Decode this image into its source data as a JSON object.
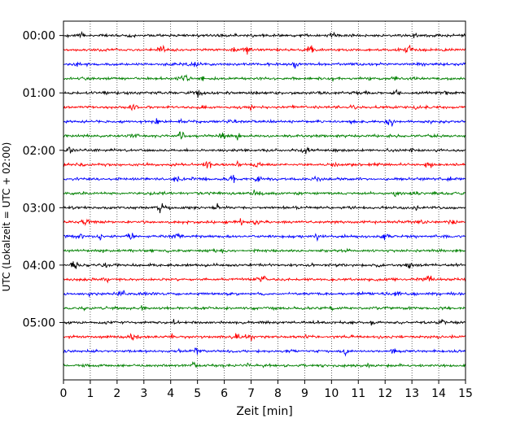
{
  "chart_data": {
    "type": "line",
    "title": "",
    "xlabel": "Zeit  [min]",
    "ylabel": "UTC (Lokalzeit = UTC + 02:00)",
    "xlim": [
      0,
      15
    ],
    "x_ticks": [
      0,
      1,
      2,
      3,
      4,
      5,
      6,
      7,
      8,
      9,
      10,
      11,
      12,
      13,
      14,
      15
    ],
    "x_tick_labels": [
      "0",
      "1",
      "2",
      "3",
      "4",
      "5",
      "6",
      "7",
      "8",
      "9",
      "10",
      "11",
      "12",
      "13",
      "14",
      "15"
    ],
    "ylim_minutes_utc": [
      -15,
      360
    ],
    "y_tick_labels": [
      "00:00",
      "01:00",
      "02:00",
      "03:00",
      "04:00",
      "05:00"
    ],
    "y_ticks_minutes_utc": [
      0,
      60,
      120,
      180,
      240,
      300
    ],
    "vertical_gridlines": true,
    "trace_color_cycle": [
      "#000000",
      "#ff0000",
      "#0000ff",
      "#008000"
    ],
    "series": [
      {
        "start": "00:00",
        "color": "#000000"
      },
      {
        "start": "00:15",
        "color": "#ff0000"
      },
      {
        "start": "00:30",
        "color": "#0000ff"
      },
      {
        "start": "00:45",
        "color": "#008000"
      },
      {
        "start": "01:00",
        "color": "#000000"
      },
      {
        "start": "01:15",
        "color": "#ff0000"
      },
      {
        "start": "01:30",
        "color": "#0000ff"
      },
      {
        "start": "01:45",
        "color": "#008000"
      },
      {
        "start": "02:00",
        "color": "#000000"
      },
      {
        "start": "02:15",
        "color": "#ff0000"
      },
      {
        "start": "02:30",
        "color": "#0000ff"
      },
      {
        "start": "02:45",
        "color": "#008000"
      },
      {
        "start": "03:00",
        "color": "#000000"
      },
      {
        "start": "03:15",
        "color": "#ff0000"
      },
      {
        "start": "03:30",
        "color": "#0000ff"
      },
      {
        "start": "03:45",
        "color": "#008000"
      },
      {
        "start": "04:00",
        "color": "#000000"
      },
      {
        "start": "04:15",
        "color": "#ff0000"
      },
      {
        "start": "04:30",
        "color": "#0000ff"
      },
      {
        "start": "04:45",
        "color": "#008000"
      },
      {
        "start": "05:00",
        "color": "#000000"
      },
      {
        "start": "05:15",
        "color": "#ff0000"
      },
      {
        "start": "05:30",
        "color": "#0000ff"
      },
      {
        "start": "05:45",
        "color": "#008000"
      }
    ]
  }
}
